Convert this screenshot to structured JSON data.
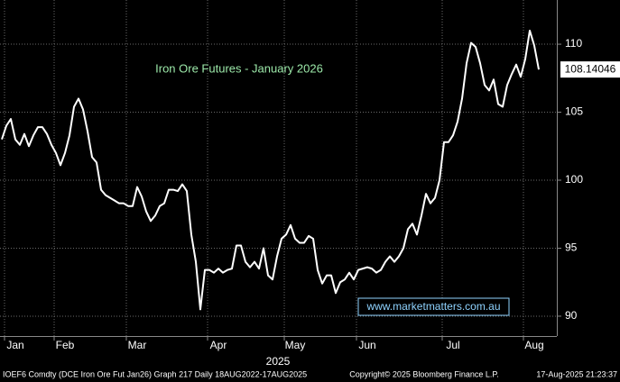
{
  "chart_data": {
    "type": "line",
    "title": "Iron Ore Futures - January 2026",
    "annotation": "www.marketmatters.com.au",
    "xlabel": "2025",
    "footer_left": "IOEF6 Comdty (DCE Iron Ore Fut  Jan26) Graph 217  Daily 18AUG2022-17AUG2025",
    "footer_center": "Copyright© 2025 Bloomberg Finance L.P.",
    "footer_right": "17-Aug-2025 21:23:37",
    "categories": [
      null,
      null,
      null,
      "Jan",
      null,
      null,
      null,
      null,
      null,
      null,
      null,
      null,
      null,
      null,
      "Feb",
      null,
      null,
      null,
      null,
      null,
      null,
      null,
      null,
      null,
      null,
      null,
      null,
      null,
      null,
      null,
      "Mar",
      null,
      null,
      null,
      null,
      null,
      null,
      null,
      null,
      null,
      null,
      null,
      null,
      null,
      null,
      null,
      null,
      null,
      "Apr",
      null,
      null,
      null,
      null,
      null,
      null,
      null,
      null,
      null,
      null,
      null,
      null,
      null,
      null,
      null,
      null,
      "May",
      null,
      null,
      null,
      null,
      null,
      null,
      null,
      null,
      null,
      null,
      null,
      null,
      null,
      null,
      null,
      "Jun",
      null,
      null,
      null,
      null,
      null,
      null,
      null,
      null,
      null,
      null,
      null,
      null,
      null,
      null,
      null,
      null,
      null,
      null,
      "Jul",
      null,
      null,
      null,
      null,
      null,
      null,
      null,
      null,
      null,
      null,
      null,
      null,
      null,
      null,
      null,
      null,
      null,
      "Aug",
      null
    ],
    "values": [
      103.0,
      104.0,
      104.5,
      103.0,
      102.6,
      103.4,
      102.5,
      103.3,
      103.9,
      103.9,
      103.4,
      102.6,
      102.0,
      101.1,
      102.0,
      103.3,
      105.4,
      106.0,
      105.2,
      103.6,
      101.7,
      101.3,
      99.3,
      98.9,
      98.7,
      98.5,
      98.3,
      98.3,
      98.1,
      98.1,
      99.5,
      98.8,
      97.7,
      97.0,
      97.4,
      98.1,
      98.3,
      99.3,
      99.3,
      99.2,
      99.7,
      99.2,
      96.0,
      94.0,
      90.5,
      93.4,
      93.4,
      93.2,
      93.5,
      93.2,
      93.4,
      93.5,
      95.2,
      95.2,
      94.0,
      93.6,
      94.0,
      93.5,
      95.0,
      93.0,
      92.7,
      94.4,
      95.7,
      96.0,
      96.7,
      95.7,
      95.4,
      95.4,
      95.9,
      95.7,
      93.4,
      92.4,
      93.0,
      93.0,
      91.7,
      92.5,
      92.7,
      93.2,
      92.7,
      93.4,
      93.5,
      93.6,
      93.5,
      93.2,
      93.4,
      94.0,
      94.4,
      94.0,
      94.4,
      95.0,
      96.4,
      96.8,
      96.0,
      97.4,
      99.0,
      98.3,
      98.7,
      100.0,
      102.8,
      102.8,
      103.3,
      104.3,
      106.0,
      108.6,
      110.1,
      109.8,
      108.6,
      107.0,
      106.6,
      107.4,
      105.6,
      105.4,
      107.0,
      107.8,
      108.5,
      107.6,
      108.9,
      111.0,
      109.9,
      108.14046
    ],
    "color": "#ffffff",
    "ylim": [
      88.54,
      113.25
    ],
    "yticks": [
      90,
      95,
      100,
      105,
      110
    ],
    "grid": true
  }
}
